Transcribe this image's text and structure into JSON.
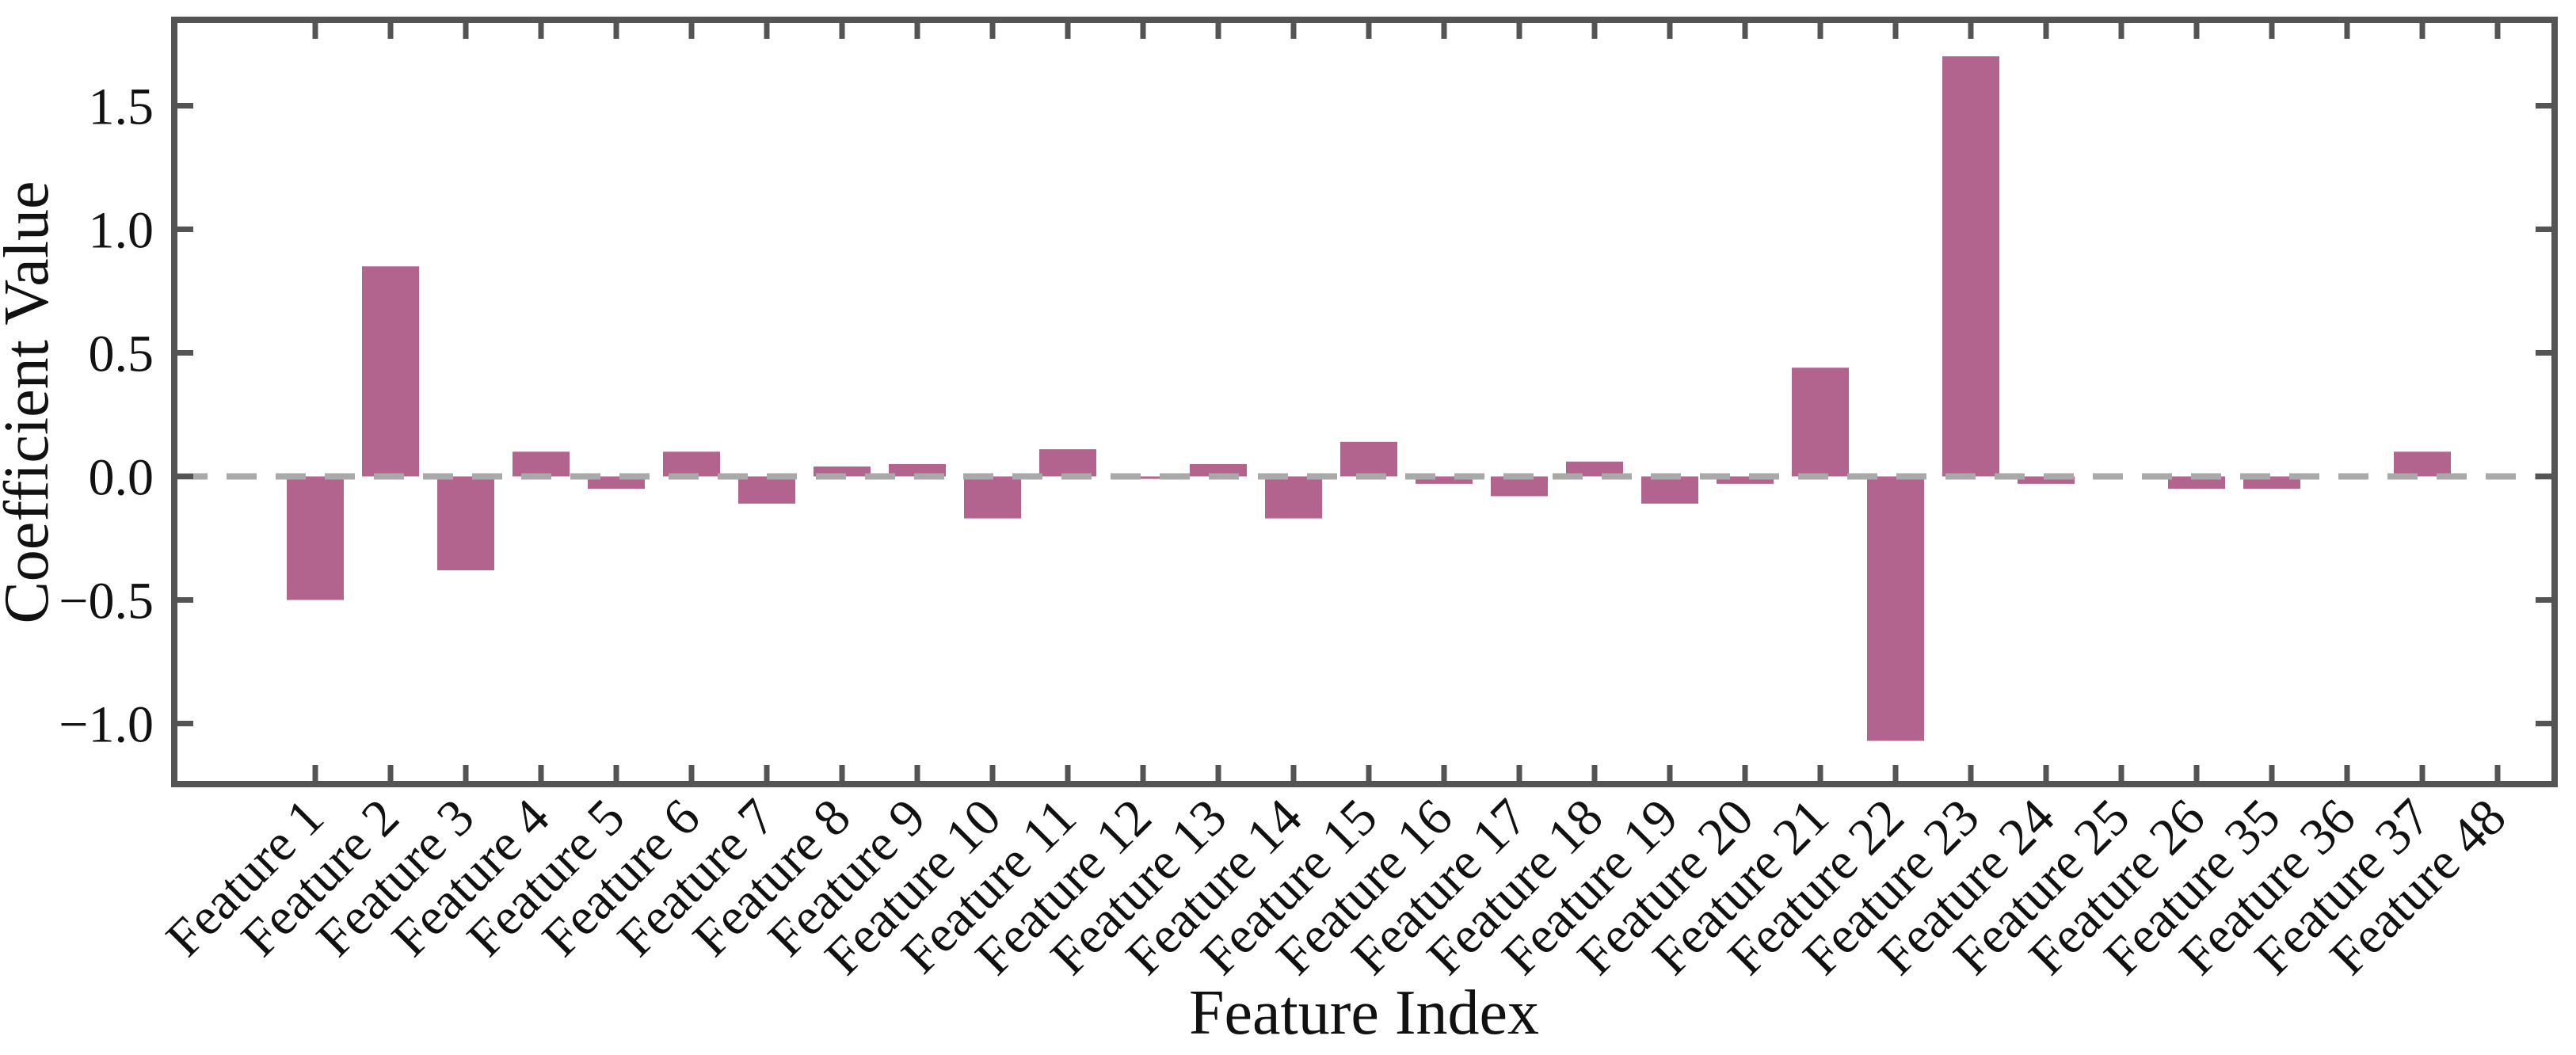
{
  "chart_data": {
    "type": "bar",
    "title": "",
    "xlabel": "Feature Index",
    "ylabel": "Coefficient Value",
    "categories": [
      "Feature 1",
      "Feature 2",
      "Feature 3",
      "Feature 4",
      "Feature 5",
      "Feature 6",
      "Feature 7",
      "Feature 8",
      "Feature 9",
      "Feature 10",
      "Feature 11",
      "Feature 12",
      "Feature 13",
      "Feature 14",
      "Feature 15",
      "Feature 16",
      "Feature 17",
      "Feature 18",
      "Feature 19",
      "Feature 20",
      "Feature 21",
      "Feature 22",
      "Feature 23",
      "Feature 24",
      "Feature 25",
      "Feature 26",
      "Feature 35",
      "Feature 36",
      "Feature 37",
      "Feature 48"
    ],
    "values": [
      -0.5,
      0.85,
      -0.38,
      0.1,
      -0.05,
      0.1,
      -0.11,
      0.04,
      0.05,
      -0.17,
      0.11,
      -0.01,
      0.05,
      -0.17,
      0.14,
      -0.03,
      -0.08,
      0.06,
      -0.11,
      -0.03,
      0.44,
      -1.07,
      1.7,
      -0.03,
      0.0,
      -0.05,
      -0.05,
      0.0,
      0.1,
      0.0
    ],
    "ylim": [
      -1.25,
      1.85
    ],
    "yticks": [
      "1.5",
      "1.0",
      "0.5",
      "0.0",
      "-0.5",
      "-1.0"
    ],
    "ytick_values": [
      1.5,
      1.0,
      0.5,
      0.0,
      -0.5,
      -1.0
    ],
    "zero_line": {
      "value": 0.0,
      "style": "dashed",
      "color": "#a9a9a9"
    },
    "grid": false,
    "legend": null,
    "bar_color": "#b2648f",
    "axis_color": "#545454",
    "text_color": "#111111",
    "tick_direction": "in",
    "x_tick_label_rotation_deg": 45
  }
}
